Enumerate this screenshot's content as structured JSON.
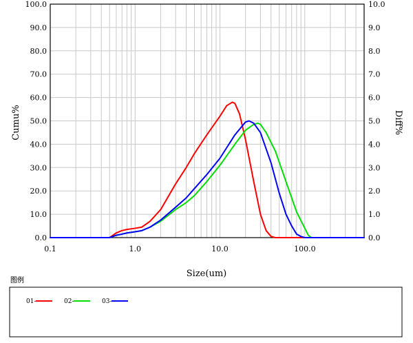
{
  "chart_data": {
    "type": "line",
    "title": "",
    "xlabel": "Size(um)",
    "ylabel_left": "Cumu%",
    "ylabel_right": "Diff%",
    "x_scale": "log",
    "xlim": [
      0.1,
      500
    ],
    "ylim_left": [
      0,
      100
    ],
    "ylim_right": [
      0,
      10
    ],
    "grid": true,
    "x_ticks": [
      "0.1",
      "1.0",
      "10.0",
      "100.0"
    ],
    "y_ticks_left": [
      "0.0",
      "10.0",
      "20.0",
      "30.0",
      "40.0",
      "50.0",
      "60.0",
      "70.0",
      "80.0",
      "90.0",
      "100.0"
    ],
    "y_ticks_right": [
      "0.0",
      "1.0",
      "2.0",
      "3.0",
      "4.0",
      "5.0",
      "6.0",
      "7.0",
      "8.0",
      "9.0",
      "10.0"
    ],
    "legend_title": "图例",
    "series": [
      {
        "name": "01-",
        "color": "#ff0000",
        "axis": "right",
        "x": [
          0.1,
          0.5,
          0.6,
          0.7,
          0.8,
          1.0,
          1.2,
          1.5,
          2.0,
          3.0,
          4.0,
          5.0,
          7.0,
          10.0,
          12.0,
          14.0,
          15.0,
          17.0,
          20.0,
          25.0,
          30.0,
          35.0,
          40.0,
          45.0,
          500
        ],
        "values": [
          0,
          0,
          0.2,
          0.3,
          0.35,
          0.4,
          0.45,
          0.7,
          1.2,
          2.3,
          3.0,
          3.6,
          4.4,
          5.2,
          5.65,
          5.8,
          5.75,
          5.3,
          4.2,
          2.4,
          1.0,
          0.3,
          0.05,
          0,
          0
        ]
      },
      {
        "name": "02-",
        "color": "#00dd00",
        "axis": "right",
        "x": [
          0.1,
          0.5,
          0.6,
          0.7,
          0.8,
          1.0,
          1.2,
          1.5,
          2.0,
          3.0,
          4.0,
          5.0,
          7.0,
          10.0,
          15.0,
          20.0,
          25.0,
          28.0,
          30.0,
          35.0,
          45.0,
          60.0,
          80.0,
          100.0,
          110.0,
          120.0,
          500
        ],
        "values": [
          0,
          0,
          0.1,
          0.15,
          0.2,
          0.25,
          0.3,
          0.45,
          0.7,
          1.2,
          1.5,
          1.8,
          2.4,
          3.1,
          4.0,
          4.6,
          4.85,
          4.9,
          4.85,
          4.5,
          3.7,
          2.4,
          1.1,
          0.4,
          0.1,
          0,
          0
        ]
      },
      {
        "name": "03-",
        "color": "#0000ff",
        "axis": "right",
        "x": [
          0.1,
          0.5,
          0.6,
          0.7,
          0.8,
          1.0,
          1.2,
          1.5,
          2.0,
          3.0,
          4.0,
          5.0,
          7.0,
          10.0,
          15.0,
          20.0,
          22.0,
          25.0,
          30.0,
          40.0,
          50.0,
          60.0,
          70.0,
          80.0,
          90.0,
          100.0,
          500
        ],
        "values": [
          0,
          0,
          0.1,
          0.15,
          0.2,
          0.25,
          0.3,
          0.45,
          0.75,
          1.3,
          1.7,
          2.1,
          2.7,
          3.4,
          4.4,
          4.95,
          5.0,
          4.9,
          4.5,
          3.2,
          1.9,
          1.0,
          0.5,
          0.15,
          0.05,
          0,
          0
        ]
      }
    ]
  }
}
